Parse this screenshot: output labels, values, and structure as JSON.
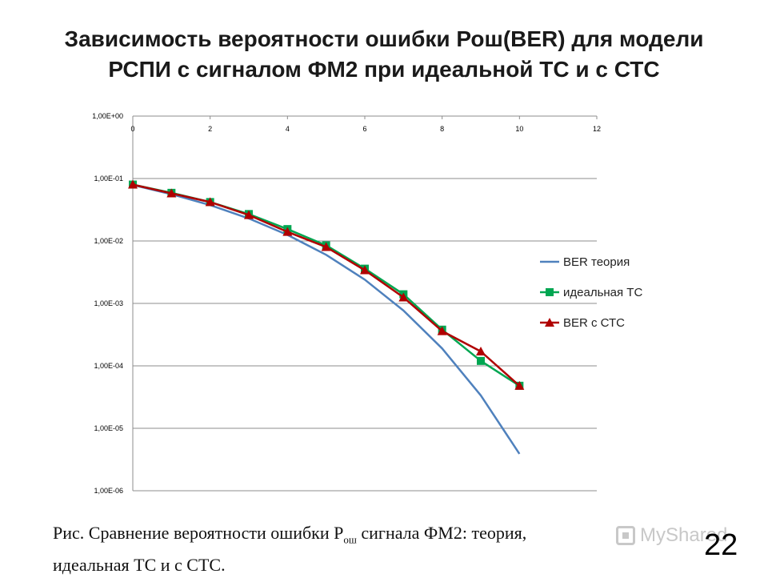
{
  "slide": {
    "title_line1": "Зависимость вероятности ошибки Рош(BER) для модели",
    "title_line2": "РСПИ с сигналом ФМ2 при идеальной ТС и с СТС",
    "caption_part1": "Рис. Сравнение вероятности ошибки Р",
    "caption_sub": "ош",
    "caption_part2": " сигнала ФМ2: теория,",
    "caption_line2": "идеальная ТС и с СТС.",
    "watermark": "MyShared",
    "page_number": "22"
  },
  "chart_data": {
    "type": "line",
    "log_y": true,
    "xlim": [
      0,
      12
    ],
    "ylim_exp": [
      -6,
      0
    ],
    "x_ticks": [
      "0",
      "2",
      "4",
      "6",
      "8",
      "10",
      "12"
    ],
    "y_ticks": [
      "1,00E+00",
      "1,00E-01",
      "1,00E-02",
      "1,00E-03",
      "1,00E-04",
      "1,00E-05",
      "1,00E-06"
    ],
    "x_axis_position": "top",
    "grid": true,
    "legend_position": "right",
    "series": [
      {
        "name": "BER теория",
        "color": "#4f81bd",
        "marker": "none",
        "points": [
          [
            0,
            0.079
          ],
          [
            1,
            0.056
          ],
          [
            2,
            0.0375
          ],
          [
            3,
            0.0229
          ],
          [
            4,
            0.0125
          ],
          [
            5,
            0.006
          ],
          [
            6,
            0.0024
          ],
          [
            7,
            0.00077
          ],
          [
            8,
            0.00019
          ],
          [
            9,
            3.36e-05
          ],
          [
            10,
            3.9e-06
          ]
        ]
      },
      {
        "name": "идеальная ТС",
        "color": "#00a651",
        "marker": "square",
        "points": [
          [
            0,
            0.08
          ],
          [
            1,
            0.059
          ],
          [
            2,
            0.042
          ],
          [
            3,
            0.027
          ],
          [
            4,
            0.0155
          ],
          [
            5,
            0.0085
          ],
          [
            6,
            0.0036
          ],
          [
            7,
            0.0014
          ],
          [
            8,
            0.00038
          ],
          [
            9,
            0.00012
          ],
          [
            10,
            4.8e-05
          ]
        ]
      },
      {
        "name": "BER с СТС",
        "color": "#b00000",
        "marker": "triangle",
        "points": [
          [
            0,
            0.08
          ],
          [
            1,
            0.058
          ],
          [
            2,
            0.042
          ],
          [
            3,
            0.026
          ],
          [
            4,
            0.014
          ],
          [
            5,
            0.008
          ],
          [
            6,
            0.0034
          ],
          [
            7,
            0.00125
          ],
          [
            8,
            0.00036
          ],
          [
            9,
            0.00017
          ],
          [
            10,
            4.8e-05
          ]
        ]
      }
    ]
  }
}
